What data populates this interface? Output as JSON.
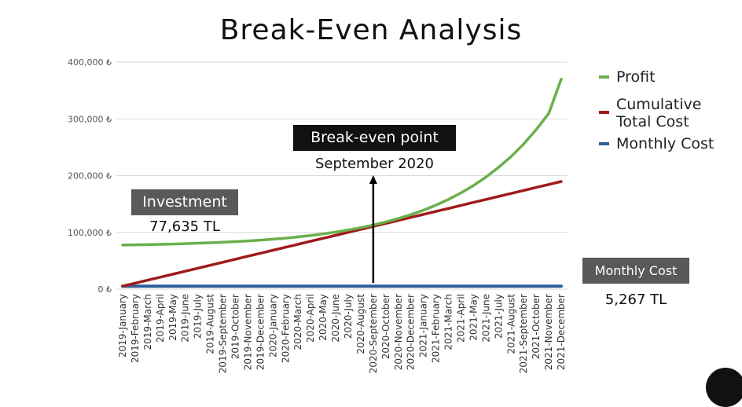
{
  "title": "Break-Even Analysis",
  "legend": {
    "profit": "Profit",
    "cumulative_line1": "Cumulative",
    "cumulative_line2": "Total Cost",
    "monthly": "Monthly Cost"
  },
  "annotations": {
    "break_even_label": "Break-even point",
    "break_even_date": "September 2020",
    "investment_label": "Investment",
    "investment_value": "77,635 TL",
    "monthly_cost_label": "Monthly Cost",
    "monthly_cost_value": "5,267 TL"
  },
  "colors": {
    "profit": "#6ab04c",
    "cumulative": "#9e1b1b",
    "monthly": "#2e5e9e",
    "grid": "#d9d9d9",
    "box_dark": "#111111",
    "box_gray": "#595959"
  },
  "chart_data": {
    "type": "line",
    "categories": [
      "2019-January",
      "2019-February",
      "2019-March",
      "2019-April",
      "2019-May",
      "2019-June",
      "2019-July",
      "2019-August",
      "2019-September",
      "2019-October",
      "2019-November",
      "2019-December",
      "2020-January",
      "2020-February",
      "2020-March",
      "2020-April",
      "2020-May",
      "2020-June",
      "2020-July",
      "2020-August",
      "2020-September",
      "2020-October",
      "2020-November",
      "2020-December",
      "2021-January",
      "2021-February",
      "2021-March",
      "2021-April",
      "2021-May",
      "2021-June",
      "2021-July",
      "2021-August",
      "2021-September",
      "2021-October",
      "2021-November",
      "2021-December"
    ],
    "yticks": [
      "400,000 ₺",
      "300,000 ₺",
      "200,000 ₺",
      "100,000 ₺",
      "0 ₺"
    ],
    "ytick_values": [
      400000,
      300000,
      200000,
      100000,
      0
    ],
    "ylim": [
      0,
      400000
    ],
    "grid": true,
    "legend_position": "right",
    "series": [
      {
        "name": "Profit",
        "color": "#6ab04c",
        "values": [
          77635,
          78000,
          78400,
          78900,
          79400,
          80100,
          80900,
          81700,
          82700,
          83800,
          85000,
          86400,
          88000,
          89800,
          92000,
          94500,
          97300,
          100500,
          104200,
          108300,
          113000,
          118300,
          124400,
          131200,
          139000,
          147900,
          158000,
          169500,
          182600,
          197500,
          214500,
          233700,
          255700,
          280800,
          309300,
          370000
        ]
      },
      {
        "name": "Cumulative Total Cost",
        "color": "#9e1b1b",
        "values": [
          5267,
          10534,
          15801,
          21068,
          26335,
          31602,
          36869,
          42136,
          47403,
          52670,
          57937,
          63204,
          68471,
          73738,
          79005,
          84272,
          89539,
          94806,
          100073,
          105340,
          110607,
          115874,
          121141,
          126408,
          131675,
          136942,
          142209,
          147476,
          152743,
          158010,
          163277,
          168544,
          173811,
          179078,
          184345,
          189612
        ]
      },
      {
        "name": "Monthly Cost",
        "color": "#2e5e9e",
        "values": [
          5267,
          5267,
          5267,
          5267,
          5267,
          5267,
          5267,
          5267,
          5267,
          5267,
          5267,
          5267,
          5267,
          5267,
          5267,
          5267,
          5267,
          5267,
          5267,
          5267,
          5267,
          5267,
          5267,
          5267,
          5267,
          5267,
          5267,
          5267,
          5267,
          5267,
          5267,
          5267,
          5267,
          5267,
          5267,
          5267
        ]
      }
    ],
    "break_even_index": 20
  }
}
